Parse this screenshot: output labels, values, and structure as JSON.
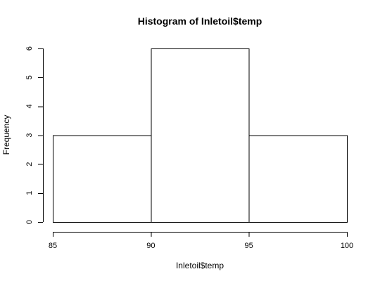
{
  "chart_data": {
    "type": "bar",
    "title": "Histogram of Inletoil$temp",
    "xlabel": "Inletoil$temp",
    "ylabel": "Frequency",
    "bins": [
      {
        "from": 85,
        "to": 90,
        "count": 3
      },
      {
        "from": 90,
        "to": 95,
        "count": 6
      },
      {
        "from": 95,
        "to": 100,
        "count": 3
      }
    ],
    "x_ticks": [
      "85",
      "90",
      "95",
      "100"
    ],
    "y_ticks": [
      "0",
      "1",
      "2",
      "3",
      "4",
      "5",
      "6"
    ],
    "xlim": [
      85,
      100
    ],
    "ylim": [
      0,
      6
    ],
    "grid": false,
    "legend": "none"
  }
}
